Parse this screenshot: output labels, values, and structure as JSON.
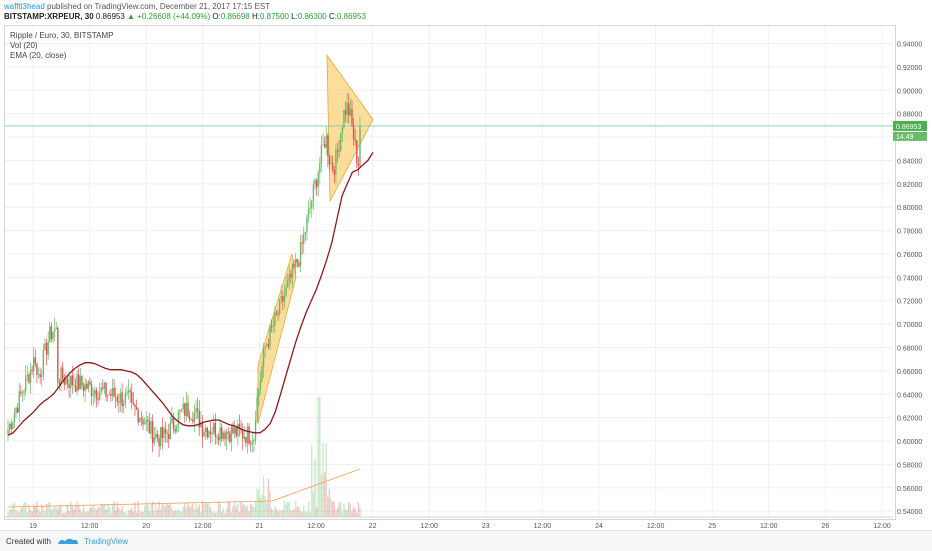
{
  "header": {
    "author": "wafftl3head",
    "published": "published on TradingView.com, December 21, 2017 17:15 EST",
    "symbol": "BITSTAMP:XRPEUR, 30",
    "last": "0.86953",
    "change": "+0.26608 (+44.09%)",
    "o_label": "O:",
    "o_value": "0.86698",
    "h_label": "H:",
    "h_value": "0.87500",
    "l_label": "L:",
    "l_value": "0.86300",
    "c_label": "C:",
    "c_value": "0.86953"
  },
  "legend": {
    "title": "Ripple / Euro, 30, BITSTAMP",
    "vol": "Vol (20)",
    "ema": "EMA (20, close)"
  },
  "footer": {
    "created": "Created with",
    "brand": "TradingView"
  },
  "colors": {
    "up": "#6aba6a",
    "down": "#d9534f",
    "ema": "#8b1a1a",
    "pattern_fill": "#f8c85a",
    "price_line": "#7fc9c9",
    "grid": "#eef0f3"
  },
  "chart_data": {
    "type": "candlestick",
    "title": "Ripple / Euro, 30, BITSTAMP",
    "y_range": [
      0.535,
      0.955
    ],
    "y_ticks": [
      "0.94000",
      "0.92000",
      "0.90000",
      "0.88000",
      "0.86000",
      "0.84000",
      "0.82000",
      "0.80000",
      "0.78000",
      "0.76000",
      "0.74000",
      "0.72000",
      "0.70000",
      "0.68000",
      "0.66000",
      "0.64000",
      "0.62000",
      "0.60000",
      "0.58000",
      "0.56000",
      "0.54000"
    ],
    "x_labels": [
      "19",
      "12:00",
      "20",
      "12:00",
      "21",
      "12:00",
      "22",
      "12:00",
      "23",
      "12:00",
      "24",
      "12:00",
      "25",
      "12:00",
      "26",
      "12:00"
    ],
    "current_price_label": "0.86953",
    "current_volume_label": "14.49",
    "series": [
      {
        "name": "EMA (20, close)",
        "values": [
          0.605,
          0.607,
          0.612,
          0.617,
          0.621,
          0.625,
          0.63,
          0.634,
          0.637,
          0.641,
          0.647,
          0.653,
          0.658,
          0.662,
          0.665,
          0.667,
          0.667,
          0.666,
          0.664,
          0.662,
          0.661,
          0.661,
          0.661,
          0.66,
          0.659,
          0.657,
          0.653,
          0.648,
          0.643,
          0.638,
          0.633,
          0.627,
          0.621,
          0.617,
          0.614,
          0.613,
          0.613,
          0.614,
          0.616,
          0.617,
          0.618,
          0.618,
          0.616,
          0.614,
          0.613,
          0.611,
          0.609,
          0.608,
          0.607,
          0.607,
          0.61,
          0.615,
          0.625,
          0.64,
          0.655,
          0.67,
          0.685,
          0.698,
          0.71,
          0.72,
          0.73,
          0.742,
          0.755,
          0.77,
          0.79,
          0.81,
          0.82,
          0.83,
          0.832,
          0.836,
          0.84,
          0.847
        ]
      }
    ]
  }
}
